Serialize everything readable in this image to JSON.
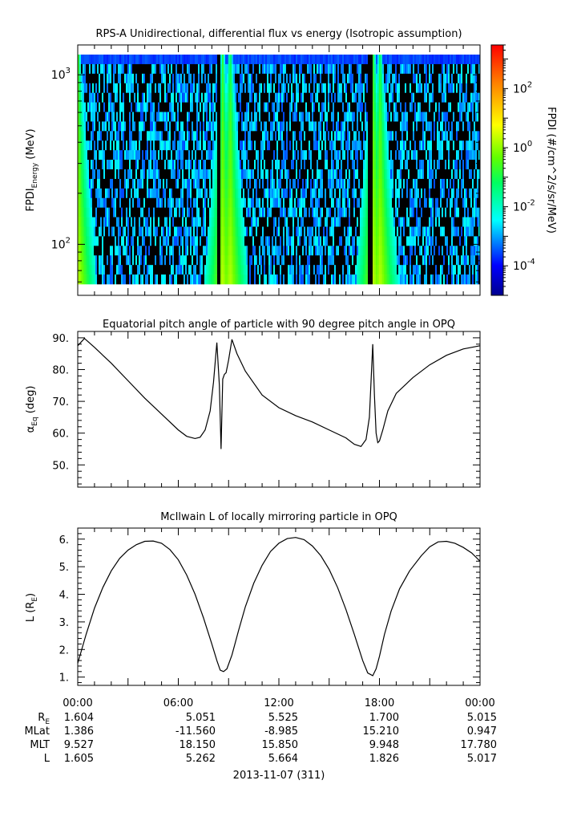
{
  "chart_data": [
    {
      "type": "heatmap",
      "title": "RPS-A Unidirectional, differential flux vs energy (Isotropic assumption)",
      "ylabel_main": "FPDI",
      "ylabel_sub": "Energy",
      "ylabel_unit": " (MeV)",
      "yscale": "log",
      "ylim": [
        50,
        1500
      ],
      "yticks": [
        {
          "value": 100,
          "base": "10",
          "exp": "2"
        },
        {
          "value": 1000,
          "base": "10",
          "exp": "3"
        }
      ],
      "xlim_hours": [
        0,
        24
      ],
      "colorbar": {
        "label": "FPDI (#/cm^2/s/sr/MeV)",
        "scale": "log",
        "range": [
          1e-05,
          3000.0
        ],
        "ticks": [
          {
            "value": 0.0001,
            "base": "10",
            "exp": "-4"
          },
          {
            "value": 0.01,
            "base": "10",
            "exp": "-2"
          },
          {
            "value": 1,
            "base": "10",
            "exp": "0"
          },
          {
            "value": 100,
            "base": "10",
            "exp": "2"
          }
        ]
      },
      "bright_bands_hours": [
        0.0,
        8.6,
        9.05,
        17.6,
        18.0
      ],
      "gaps_hours": [
        8.35,
        17.4
      ]
    },
    {
      "type": "line",
      "title": "Equatorial pitch angle of particle with 90 degree pitch angle in OPQ",
      "ylabel_main": "α",
      "ylabel_sub": "Eq",
      "ylabel_unit": " (deg)",
      "ylim": [
        43,
        92
      ],
      "yticks": [
        "50.",
        "60.",
        "70.",
        "80.",
        "90."
      ],
      "x": [
        0,
        0.4,
        1,
        2,
        3,
        4,
        5,
        6,
        6.5,
        7,
        7.3,
        7.6,
        7.9,
        8.1,
        8.3,
        8.45,
        8.55,
        8.65,
        8.75,
        8.85,
        9.0,
        9.2,
        9.5,
        10,
        11,
        12,
        13,
        14,
        15,
        16,
        16.5,
        16.9,
        17.2,
        17.4,
        17.6,
        17.7,
        17.8,
        17.9,
        18.0,
        18.2,
        18.5,
        19,
        20,
        21,
        22,
        23,
        24
      ],
      "y": [
        87.5,
        89.8,
        87,
        82,
        76.5,
        71,
        66,
        61,
        59,
        58.3,
        58.7,
        61,
        67,
        76,
        88.5,
        75,
        55,
        77,
        78.5,
        79,
        83,
        89.5,
        85,
        79.5,
        72,
        68,
        65.5,
        63.5,
        61,
        58.5,
        56.5,
        55.8,
        58,
        65,
        88,
        72,
        60,
        57,
        57.5,
        61,
        67,
        72.5,
        77.5,
        81.5,
        84.5,
        86.5,
        87.5
      ]
    },
    {
      "type": "line",
      "title": "McIlwain L of locally mirroring particle in OPQ",
      "ylabel_main": "L (R",
      "ylabel_sub": "E",
      "ylabel_unit": ")",
      "ylim": [
        0.7,
        6.4
      ],
      "yticks": [
        "1.",
        "2.",
        "3.",
        "4.",
        "5.",
        "6."
      ],
      "x": [
        0,
        0.5,
        1,
        1.5,
        2,
        2.5,
        3,
        3.5,
        4,
        4.5,
        5,
        5.5,
        6,
        6.5,
        7,
        7.5,
        8,
        8.3,
        8.5,
        8.7,
        8.9,
        9.2,
        9.6,
        10,
        10.5,
        11,
        11.5,
        12,
        12.5,
        13,
        13.5,
        14,
        14.5,
        15,
        15.5,
        16,
        16.5,
        17,
        17.3,
        17.6,
        17.8,
        18.0,
        18.3,
        18.7,
        19.2,
        19.8,
        20.5,
        21,
        21.5,
        22,
        22.5,
        23,
        23.5,
        24
      ],
      "y": [
        1.5,
        2.55,
        3.5,
        4.25,
        4.85,
        5.3,
        5.6,
        5.8,
        5.92,
        5.93,
        5.85,
        5.62,
        5.25,
        4.7,
        4.0,
        3.15,
        2.2,
        1.6,
        1.25,
        1.2,
        1.3,
        1.8,
        2.7,
        3.55,
        4.4,
        5.05,
        5.55,
        5.85,
        6.02,
        6.06,
        5.98,
        5.75,
        5.4,
        4.9,
        4.25,
        3.45,
        2.55,
        1.6,
        1.15,
        1.05,
        1.3,
        1.75,
        2.55,
        3.4,
        4.2,
        4.85,
        5.4,
        5.72,
        5.9,
        5.92,
        5.85,
        5.7,
        5.5,
        5.2
      ]
    }
  ],
  "xaxis": {
    "tick_labels": [
      "00:00",
      "06:00",
      "12:00",
      "18:00",
      "00:00"
    ],
    "tick_hours": [
      0,
      6,
      12,
      18,
      24
    ],
    "date_label": "2013-11-07 (311)"
  },
  "ephemeris": {
    "row_labels": [
      {
        "main": "R",
        "sub": "E"
      },
      {
        "main": "MLat",
        "sub": ""
      },
      {
        "main": "MLT",
        "sub": ""
      },
      {
        "main": "L",
        "sub": ""
      }
    ],
    "rows": [
      [
        "1.604",
        "5.051",
        "5.525",
        "1.700",
        "5.015"
      ],
      [
        "1.386",
        "-11.560",
        "-8.985",
        "15.210",
        "0.947"
      ],
      [
        "9.527",
        "18.150",
        "15.850",
        "9.948",
        "17.780"
      ],
      [
        "1.605",
        "5.262",
        "5.664",
        "1.826",
        "5.017"
      ]
    ]
  }
}
